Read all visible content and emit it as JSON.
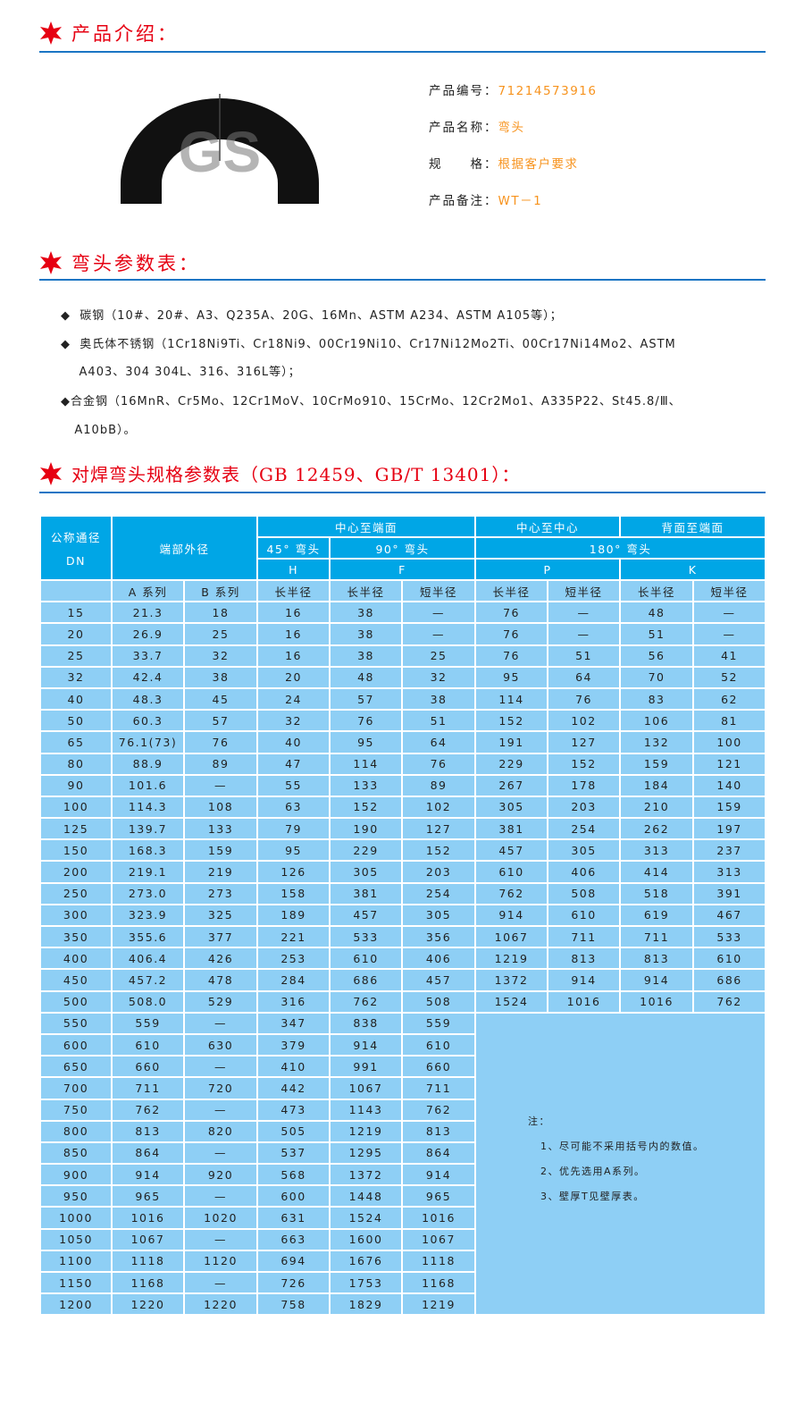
{
  "sections": {
    "intro_title": "产品介绍：",
    "params_title": "弯头参数表：",
    "spec_title": "对焊弯头规格参数表（GB 12459、GB/T 13401）："
  },
  "product": {
    "image_watermark": "GS",
    "fields": [
      {
        "label": "产品编号：",
        "value": "71214573916"
      },
      {
        "label": "产品名称：",
        "value": "弯头"
      },
      {
        "label": "规　　格：",
        "value": "根据客户要求"
      },
      {
        "label": "产品备注：",
        "value": "WT－1"
      }
    ]
  },
  "materials": [
    "◆  碳钢（10#、20#、A3、Q235A、20G、16Mn、ASTM A234、ASTM A105等）；",
    "◆  奥氏体不锈钢（1Cr18Ni9Ti、Cr18Ni9、00Cr19Ni10、Cr17Ni12Mo2Ti、00Cr17Ni14Mo2、ASTM",
    "    A403、304 304L、316、316L等）；",
    "◆合金钢（16MnR、Cr5Mo、12Cr1MoV、10CrMo910、15CrMo、12Cr2Mo1、A335P22、St45.8/Ⅲ、",
    "   A10bB）。"
  ],
  "table": {
    "h_dn": "公称通径",
    "h_dn2": "DN",
    "h_od": "端部外径",
    "h_c2e": "中心至端面",
    "h_c2c": "中心至中心",
    "h_b2e": "背面至端面",
    "h_45": "45° 弯头",
    "h_90": "90° 弯头",
    "h_180": "180° 弯头",
    "h_H": "H",
    "h_F": "F",
    "h_P": "P",
    "h_K": "K",
    "sub": [
      "",
      "A 系列",
      "B 系列",
      "长半径",
      "长半径",
      "短半径",
      "长半径",
      "短半径",
      "长半径",
      "短半径"
    ],
    "rows": [
      [
        "15",
        "21.3",
        "18",
        "16",
        "38",
        "—",
        "76",
        "—",
        "48",
        "—"
      ],
      [
        "20",
        "26.9",
        "25",
        "16",
        "38",
        "—",
        "76",
        "—",
        "51",
        "—"
      ],
      [
        "25",
        "33.7",
        "32",
        "16",
        "38",
        "25",
        "76",
        "51",
        "56",
        "41"
      ],
      [
        "32",
        "42.4",
        "38",
        "20",
        "48",
        "32",
        "95",
        "64",
        "70",
        "52"
      ],
      [
        "40",
        "48.3",
        "45",
        "24",
        "57",
        "38",
        "114",
        "76",
        "83",
        "62"
      ],
      [
        "50",
        "60.3",
        "57",
        "32",
        "76",
        "51",
        "152",
        "102",
        "106",
        "81"
      ],
      [
        "65",
        "76.1(73)",
        "76",
        "40",
        "95",
        "64",
        "191",
        "127",
        "132",
        "100"
      ],
      [
        "80",
        "88.9",
        "89",
        "47",
        "114",
        "76",
        "229",
        "152",
        "159",
        "121"
      ],
      [
        "90",
        "101.6",
        "—",
        "55",
        "133",
        "89",
        "267",
        "178",
        "184",
        "140"
      ],
      [
        "100",
        "114.3",
        "108",
        "63",
        "152",
        "102",
        "305",
        "203",
        "210",
        "159"
      ],
      [
        "125",
        "139.7",
        "133",
        "79",
        "190",
        "127",
        "381",
        "254",
        "262",
        "197"
      ],
      [
        "150",
        "168.3",
        "159",
        "95",
        "229",
        "152",
        "457",
        "305",
        "313",
        "237"
      ],
      [
        "200",
        "219.1",
        "219",
        "126",
        "305",
        "203",
        "610",
        "406",
        "414",
        "313"
      ],
      [
        "250",
        "273.0",
        "273",
        "158",
        "381",
        "254",
        "762",
        "508",
        "518",
        "391"
      ],
      [
        "300",
        "323.9",
        "325",
        "189",
        "457",
        "305",
        "914",
        "610",
        "619",
        "467"
      ],
      [
        "350",
        "355.6",
        "377",
        "221",
        "533",
        "356",
        "1067",
        "711",
        "711",
        "533"
      ],
      [
        "400",
        "406.4",
        "426",
        "253",
        "610",
        "406",
        "1219",
        "813",
        "813",
        "610"
      ],
      [
        "450",
        "457.2",
        "478",
        "284",
        "686",
        "457",
        "1372",
        "914",
        "914",
        "686"
      ],
      [
        "500",
        "508.0",
        "529",
        "316",
        "762",
        "508",
        "1524",
        "1016",
        "1016",
        "762"
      ],
      [
        "550",
        "559",
        "—",
        "347",
        "838",
        "559"
      ],
      [
        "600",
        "610",
        "630",
        "379",
        "914",
        "610"
      ],
      [
        "650",
        "660",
        "—",
        "410",
        "991",
        "660"
      ],
      [
        "700",
        "711",
        "720",
        "442",
        "1067",
        "711"
      ],
      [
        "750",
        "762",
        "—",
        "473",
        "1143",
        "762"
      ],
      [
        "800",
        "813",
        "820",
        "505",
        "1219",
        "813"
      ],
      [
        "850",
        "864",
        "—",
        "537",
        "1295",
        "864"
      ],
      [
        "900",
        "914",
        "920",
        "568",
        "1372",
        "914"
      ],
      [
        "950",
        "965",
        "—",
        "600",
        "1448",
        "965"
      ],
      [
        "1000",
        "1016",
        "1020",
        "631",
        "1524",
        "1016"
      ],
      [
        "1050",
        "1067",
        "—",
        "663",
        "1600",
        "1067"
      ],
      [
        "1100",
        "1118",
        "1120",
        "694",
        "1676",
        "1118"
      ],
      [
        "1150",
        "1168",
        "—",
        "726",
        "1753",
        "1168"
      ],
      [
        "1200",
        "1220",
        "1220",
        "758",
        "1829",
        "1219"
      ]
    ],
    "notes_title": "注：",
    "notes": [
      "1、尽可能不采用括号内的数值。",
      "2、优先选用A系列。",
      "3、壁厚T见壁厚表。"
    ]
  },
  "colors": {
    "title_red": "#e60012",
    "rule_blue": "#1a75c4",
    "value_orange": "#f7931e",
    "header_blue": "#00a6e6",
    "cell_blue": "#8ecff5"
  }
}
